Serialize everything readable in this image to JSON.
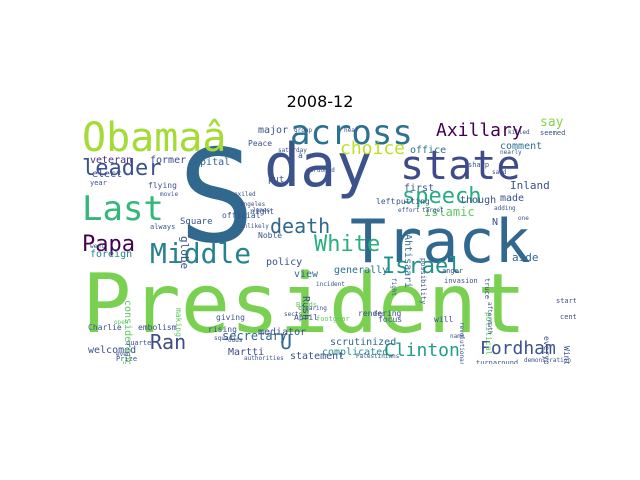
{
  "title": "2008-12",
  "words": [
    {
      "t": "President",
      "c": "#7ad151"
    },
    {
      "t": "S",
      "c": "#31688e"
    },
    {
      "t": "day",
      "c": "#3b528b"
    },
    {
      "t": "Track",
      "c": "#31688e"
    },
    {
      "t": "Obamaâ",
      "c": "#a5db36"
    },
    {
      "t": "across",
      "c": "#2c728e"
    },
    {
      "t": "state",
      "c": "#3e4a89"
    },
    {
      "t": "Last",
      "c": "#35b779"
    },
    {
      "t": "Middle",
      "c": "#26828e"
    },
    {
      "t": "Papa",
      "c": "#440154"
    },
    {
      "t": "leader",
      "c": "#3b528b"
    },
    {
      "t": "speech",
      "c": "#26ad81"
    },
    {
      "t": "Axillary",
      "c": "#440154"
    },
    {
      "t": "death",
      "c": "#31688e"
    },
    {
      "t": "White",
      "c": "#2ab07f"
    },
    {
      "t": "Israel",
      "c": "#21918c"
    },
    {
      "t": "choice",
      "c": "#bddf26"
    },
    {
      "t": "Clinton",
      "c": "#1f9e89"
    },
    {
      "t": "Fordham",
      "c": "#3b528b"
    },
    {
      "t": "Ran",
      "c": "#3e4a89"
    },
    {
      "t": "secretary",
      "c": "#31688e"
    },
    {
      "t": "former",
      "c": "#3e4a89"
    },
    {
      "t": "veteran",
      "c": "#472d7b"
    },
    {
      "t": "capital",
      "c": "#31688e"
    },
    {
      "t": "major",
      "c": "#3b528b"
    },
    {
      "t": "office",
      "c": "#2c728e"
    },
    {
      "t": "comment",
      "c": "#2c728e"
    },
    {
      "t": "Inland",
      "c": "#3b528b"
    },
    {
      "t": "Islamic",
      "c": "#5ec962"
    },
    {
      "t": "though",
      "c": "#3b528b"
    },
    {
      "t": "made",
      "c": "#3b528b"
    },
    {
      "t": "aide",
      "c": "#31688e"
    },
    {
      "t": "say",
      "c": "#86d549"
    },
    {
      "t": "elect",
      "c": "#3e4a89"
    },
    {
      "t": "foreign",
      "c": "#26828e"
    },
    {
      "t": "policy",
      "c": "#3b528b"
    },
    {
      "t": "view",
      "c": "#31688e"
    },
    {
      "t": "generally",
      "c": "#2c728e"
    },
    {
      "t": "first",
      "c": "#3b528b"
    },
    {
      "t": "complicated",
      "c": "#21918c"
    },
    {
      "t": "scrutinized",
      "c": "#31688e"
    },
    {
      "t": "welcomed",
      "c": "#3b528b"
    },
    {
      "t": "considering",
      "c": "#5ec962"
    },
    {
      "t": "globe",
      "c": "#3b528b"
    },
    {
      "t": "Martti",
      "c": "#3e4a89"
    },
    {
      "t": "mediator",
      "c": "#3b528b"
    },
    {
      "t": "Ahtisaari",
      "c": "#2c728e"
    },
    {
      "t": "acceptance",
      "c": "#3b528b"
    },
    {
      "t": "statement",
      "c": "#3b528b"
    },
    {
      "t": "Noble",
      "c": "#3b528b"
    },
    {
      "t": "U",
      "c": "#31688e"
    },
    {
      "t": "N",
      "c": "#3b528b"
    },
    {
      "t": "Square",
      "c": "#3b528b"
    },
    {
      "t": "making",
      "c": "#5ec962"
    },
    {
      "t": "Peace",
      "c": "#3b528b"
    },
    {
      "t": "put",
      "c": "#3b528b"
    },
    {
      "t": "putting",
      "c": "#3b528b"
    },
    {
      "t": "left",
      "c": "#3b528b"
    },
    {
      "t": "Rush",
      "c": "#3b528b"
    },
    {
      "t": "night",
      "c": "#3b528b"
    },
    {
      "t": "Charlie",
      "c": "#3b528b"
    },
    {
      "t": "embolism",
      "c": "#3b528b"
    },
    {
      "t": "rising",
      "c": "#3b528b"
    },
    {
      "t": "year",
      "c": "#3b528b"
    },
    {
      "t": "flying",
      "c": "#3b528b"
    },
    {
      "t": "official",
      "c": "#3b528b"
    },
    {
      "t": "always",
      "c": "#3b528b"
    },
    {
      "t": "giving",
      "c": "#3b528b"
    },
    {
      "t": "April",
      "c": "#3b528b"
    },
    {
      "t": "rendering",
      "c": "#3b528b"
    },
    {
      "t": "focus",
      "c": "#3b528b"
    },
    {
      "t": "will",
      "c": "#3b528b"
    },
    {
      "t": "everyone",
      "c": "#3b528b"
    },
    {
      "t": "political",
      "c": "#5ec962"
    },
    {
      "t": "Winters",
      "c": "#3b528b"
    },
    {
      "t": "start",
      "c": "#3b528b"
    },
    {
      "t": "century",
      "c": "#3b528b"
    },
    {
      "t": "anger",
      "c": "#3b528b"
    },
    {
      "t": "invasion",
      "c": "#3b528b"
    },
    {
      "t": "possibility",
      "c": "#3b528b"
    },
    {
      "t": "truce",
      "c": "#3b528b"
    },
    {
      "t": "Birds",
      "c": "#5ec962"
    },
    {
      "t": "footgear",
      "c": "#5ec962"
    },
    {
      "t": "Prize",
      "c": "#3b528b"
    },
    {
      "t": "quarter",
      "c": "#3b528b"
    },
    {
      "t": "turnaround",
      "c": "#3b528b"
    },
    {
      "t": "demonstration",
      "c": "#3b528b"
    },
    {
      "t": "aftermath",
      "c": "#3b528b"
    },
    {
      "t": "revolutionary",
      "c": "#3b528b"
    },
    {
      "t": "sharp",
      "c": "#3b528b"
    },
    {
      "t": "killed",
      "c": "#3b528b"
    },
    {
      "t": "seemed",
      "c": "#3b528b"
    },
    {
      "t": "nearly",
      "c": "#3b528b"
    },
    {
      "t": "said",
      "c": "#3b528b"
    },
    {
      "t": "clearing",
      "c": "#3b528b"
    },
    {
      "t": "saturday",
      "c": "#3b528b"
    },
    {
      "t": "pardoned",
      "c": "#3b528b"
    },
    {
      "t": "group",
      "c": "#3b528b"
    },
    {
      "t": "hear",
      "c": "#3b528b"
    },
    {
      "t": "effort",
      "c": "#3b528b"
    },
    {
      "t": "target",
      "c": "#3b528b"
    },
    {
      "t": "adding",
      "c": "#3b528b"
    },
    {
      "t": "one",
      "c": "#3b528b"
    },
    {
      "t": "sects",
      "c": "#3b528b"
    },
    {
      "t": "Fro",
      "c": "#3b528b"
    },
    {
      "t": "name",
      "c": "#3b528b"
    },
    {
      "t": "squad",
      "c": "#3b528b"
    },
    {
      "t": "odds",
      "c": "#3b528b"
    },
    {
      "t": "open",
      "c": "#5ec962"
    },
    {
      "t": "went",
      "c": "#3b528b"
    },
    {
      "t": "even",
      "c": "#3b528b"
    },
    {
      "t": "Palestinians",
      "c": "#3b528b"
    },
    {
      "t": "incident",
      "c": "#3b528b"
    },
    {
      "t": "fight",
      "c": "#3b528b"
    },
    {
      "t": "authorities",
      "c": "#3b528b"
    },
    {
      "t": "movie",
      "c": "#3b528b"
    },
    {
      "t": "exiled",
      "c": "#3b528b"
    },
    {
      "t": "unlikely",
      "c": "#3b528b"
    },
    {
      "t": "à",
      "c": "#3b528b"
    },
    {
      "t": "Angeles",
      "c": "#3b528b"
    },
    {
      "t": "James",
      "c": "#3b528b"
    }
  ]
}
